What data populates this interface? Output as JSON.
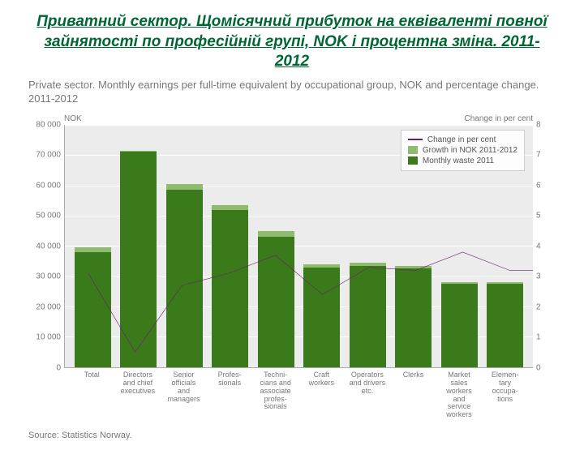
{
  "slide": {
    "title": "Приватний сектор. Щомісячний прибуток на еквіваленті повної зайнятості по професійній групі, NOK і процентна зміна. 2011-2012"
  },
  "chart": {
    "type": "bar+line-dual-axis",
    "subtitle": "Private sector. Monthly earnings per full-time equivalent by occupational group, NOK and percentage change. 2011-2012",
    "left_axis_label": "NOK",
    "right_axis_label": "Change in per cent",
    "left_axis": {
      "min": 0,
      "max": 80000,
      "tick_step": 10000,
      "ticks": [
        0,
        10000,
        20000,
        30000,
        40000,
        50000,
        60000,
        70000,
        80000
      ]
    },
    "right_axis": {
      "min": 0,
      "max": 8,
      "tick_step": 1,
      "ticks": [
        0,
        1,
        2,
        3,
        4,
        5,
        6,
        7,
        8
      ]
    },
    "categories": [
      "Total",
      "Directors and chief executives",
      "Senior officials and managers",
      "Profes-sionals",
      "Techni-cians and associate profes-sionals",
      "Craft workers",
      "Operators and drivers etc.",
      "Clerks",
      "Market sales workers and service workers",
      "Elemen-tary occupa-tions"
    ],
    "bar_dark_values": [
      38000,
      71000,
      58500,
      52000,
      43000,
      33000,
      33500,
      32500,
      27500,
      27500
    ],
    "bar_light_values": [
      39500,
      71500,
      60500,
      53500,
      45000,
      34000,
      34500,
      33500,
      28000,
      28000
    ],
    "line_values": [
      3.1,
      0.5,
      2.7,
      3.1,
      3.7,
      2.4,
      3.3,
      3.2,
      3.8,
      3.2
    ],
    "colors": {
      "plot_bg": "#ececec",
      "grid": "#ffffff",
      "bar_dark": "#3a7a1a",
      "bar_light": "#8fbb6f",
      "line": "#6b1f6b",
      "text": "#777777",
      "title": "#006633"
    },
    "legend": {
      "items": [
        {
          "kind": "line",
          "color": "#6b1f6b",
          "label": "Change in per cent"
        },
        {
          "kind": "box",
          "color": "#8fbb6f",
          "label": "Growth in NOK 2011-2012"
        },
        {
          "kind": "box",
          "color": "#3a7a1a",
          "label": "Monthly waste 2011"
        }
      ]
    },
    "source": "Source: Statistics Norway."
  }
}
